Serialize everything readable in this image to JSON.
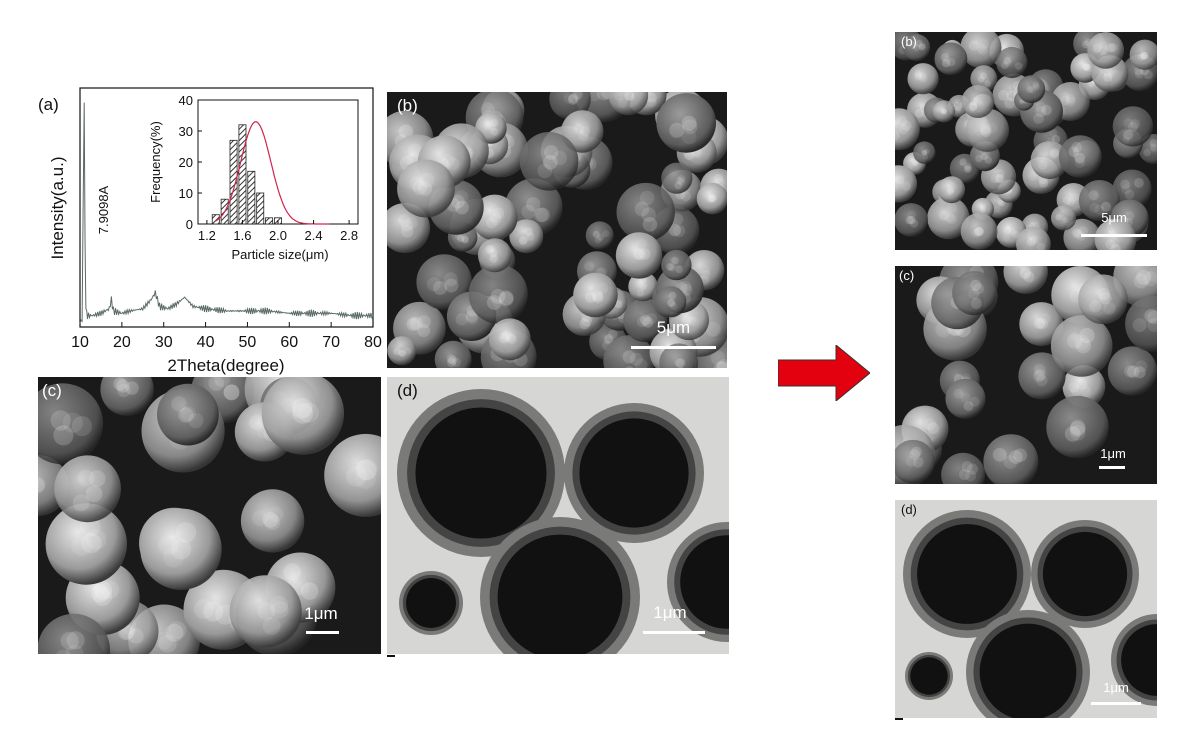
{
  "panels": {
    "a": {
      "label": "(a)",
      "peak_label": "7.9098A",
      "ylabel": "Intensity(a.u.)",
      "xlabel": "2Theta(degree)"
    },
    "b_left": {
      "label": "(b)",
      "scale": "5μm"
    },
    "c_left": {
      "label": "(c)",
      "scale": "1μm"
    },
    "d_left": {
      "label": "(d)",
      "scale": "1μm"
    },
    "b_right": {
      "label": "(b)",
      "scale": "5μm"
    },
    "c_right": {
      "label": "(c)",
      "scale": "1μm"
    },
    "d_right": {
      "label": "(d)",
      "scale": "1μm"
    }
  },
  "arrow": {
    "color": "#e3000f",
    "icon": "right-arrow-icon"
  },
  "chart_data": [
    {
      "type": "line",
      "xlabel": "2Theta(degree)",
      "ylabel": "Intensity(a.u.)",
      "xlim": [
        10,
        80
      ],
      "xticks": [
        10,
        20,
        30,
        40,
        50,
        60,
        70,
        80
      ],
      "annotations": [
        "7.9098A"
      ],
      "x": [
        10,
        10.5,
        11.0,
        11.2,
        11.4,
        11.8,
        13,
        15,
        17,
        17.5,
        18,
        20,
        22,
        25,
        27,
        28,
        29,
        31,
        33,
        35,
        36,
        37,
        40,
        45,
        50,
        55,
        60,
        65,
        70,
        75,
        80
      ],
      "y": [
        2,
        3,
        98,
        40,
        8,
        5,
        5,
        6,
        8,
        12,
        7,
        6,
        7,
        8,
        12,
        15,
        9,
        8,
        10,
        13,
        11,
        9,
        8,
        7,
        7,
        7,
        6,
        6,
        6,
        5,
        5
      ],
      "line_color": "#5a6a66"
    },
    {
      "type": "bar",
      "xlabel": "Particle size(μm)",
      "ylabel": "Frequency(%)",
      "xlim": [
        1.1,
        2.9
      ],
      "ylim": [
        0,
        40
      ],
      "xticks": [
        1.2,
        1.6,
        2.0,
        2.4,
        2.8
      ],
      "xtick_labels": [
        "1.2",
        "1.6",
        "2.0",
        "2.4",
        "2.8"
      ],
      "yticks": [
        0,
        10,
        20,
        30,
        40
      ],
      "ytick_labels": [
        "0",
        "10",
        "20",
        "30",
        "40"
      ],
      "categories": [
        1.3,
        1.4,
        1.5,
        1.6,
        1.7,
        1.8,
        1.9,
        2.0,
        2.1
      ],
      "x": [
        1.3,
        1.4,
        1.5,
        1.6,
        1.7,
        1.8,
        1.9,
        2.0,
        2.1
      ],
      "values": [
        3,
        8,
        27,
        32,
        17,
        10,
        2,
        2,
        0
      ],
      "fit_color": "#d0264b"
    }
  ]
}
